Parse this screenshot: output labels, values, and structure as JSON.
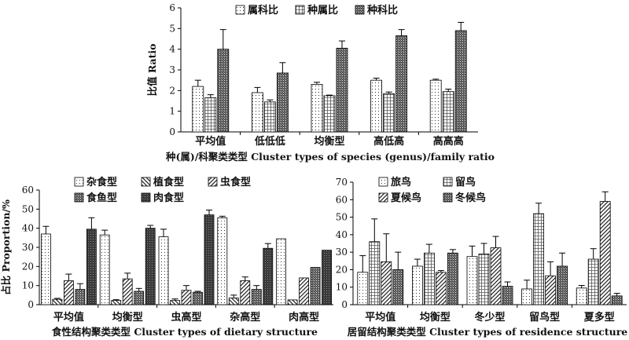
{
  "chart_data": [
    {
      "id": "top",
      "type": "bar",
      "title": "",
      "xlabel": "种(属)/科聚类类型 Cluster types of species (genus)/family ratio",
      "ylabel": "比值 Ratio",
      "ylim": [
        0,
        6
      ],
      "yticks": [
        0,
        1,
        2,
        3,
        4,
        5,
        6
      ],
      "grid": false,
      "legend_position": "top",
      "categories": [
        "平均值",
        "低低低",
        "均衡型",
        "高低高",
        "高高高"
      ],
      "series": [
        {
          "name": "属科比",
          "pattern": "dots",
          "values": [
            2.2,
            1.9,
            2.3,
            2.5,
            2.5
          ],
          "errors": [
            0.3,
            0.25,
            0.1,
            0.1,
            0.05
          ]
        },
        {
          "name": "种属比",
          "pattern": "grid",
          "values": [
            1.65,
            1.45,
            1.75,
            1.85,
            1.95
          ],
          "errors": [
            0.15,
            0.1,
            0.03,
            0.08,
            0.12
          ]
        },
        {
          "name": "种科比",
          "pattern": "dense",
          "values": [
            4.0,
            2.85,
            4.05,
            4.65,
            4.9
          ],
          "errors": [
            0.95,
            0.5,
            0.35,
            0.3,
            0.4
          ]
        }
      ]
    },
    {
      "id": "bottom-left",
      "type": "bar",
      "title": "",
      "xlabel": "食性结构聚类类型 Cluster types of dietary structure",
      "ylabel": "占比 Proportion/%",
      "ylim": [
        0,
        60
      ],
      "yticks": [
        0,
        10,
        20,
        30,
        40,
        50,
        60
      ],
      "grid": false,
      "legend_position": "top",
      "categories": [
        "平均值",
        "均衡型",
        "虫高型",
        "杂高型",
        "肉高型"
      ],
      "series": [
        {
          "name": "杂食型",
          "pattern": "dots",
          "values": [
            37,
            36.5,
            35.5,
            45.5,
            34.5
          ],
          "errors": [
            4,
            2.5,
            4,
            0.8,
            0
          ]
        },
        {
          "name": "植食型",
          "pattern": "backslash",
          "values": [
            2.8,
            2.2,
            2.2,
            3.5,
            2.5
          ],
          "errors": [
            0.5,
            0.4,
            0.8,
            1.5,
            0
          ]
        },
        {
          "name": "虫食型",
          "pattern": "slash",
          "values": [
            12.5,
            13.5,
            7.5,
            12.5,
            14
          ],
          "errors": [
            3.5,
            3,
            2.5,
            2,
            0
          ]
        },
        {
          "name": "食鱼型",
          "pattern": "dense",
          "values": [
            8,
            7,
            6.5,
            8,
            19.5
          ],
          "errors": [
            3,
            1.5,
            0.5,
            2,
            0
          ]
        },
        {
          "name": "肉食型",
          "pattern": "dark",
          "values": [
            39.5,
            40,
            47,
            29.5,
            28.5
          ],
          "errors": [
            6,
            1.5,
            2.5,
            2.5,
            0
          ]
        }
      ]
    },
    {
      "id": "bottom-right",
      "type": "bar",
      "title": "",
      "xlabel": "居留结构聚类类型 Cluster types of residence structure",
      "ylabel": "",
      "ylim": [
        0,
        70
      ],
      "yticks": [
        0,
        10,
        20,
        30,
        40,
        50,
        60,
        70
      ],
      "grid": false,
      "legend_position": "top",
      "categories": [
        "平均值",
        "均衡型",
        "冬少型",
        "留鸟型",
        "夏多型"
      ],
      "series": [
        {
          "name": "旅鸟",
          "pattern": "dots",
          "values": [
            18.5,
            22,
            27.5,
            9,
            9.5
          ],
          "errors": [
            9.5,
            4,
            6,
            5,
            1.5
          ]
        },
        {
          "name": "留鸟",
          "pattern": "grid",
          "values": [
            36,
            29.5,
            29,
            52,
            26
          ],
          "errors": [
            13,
            5,
            6,
            6,
            6
          ]
        },
        {
          "name": "夏候鸟",
          "pattern": "slash",
          "values": [
            24.5,
            18.5,
            32.5,
            16.5,
            59
          ],
          "errors": [
            16,
            1,
            6.5,
            8,
            5.5
          ]
        },
        {
          "name": "冬候鸟",
          "pattern": "dense",
          "values": [
            20,
            29.5,
            10.5,
            22,
            5
          ],
          "errors": [
            10,
            2,
            2.5,
            7.5,
            1.5
          ]
        }
      ]
    }
  ]
}
